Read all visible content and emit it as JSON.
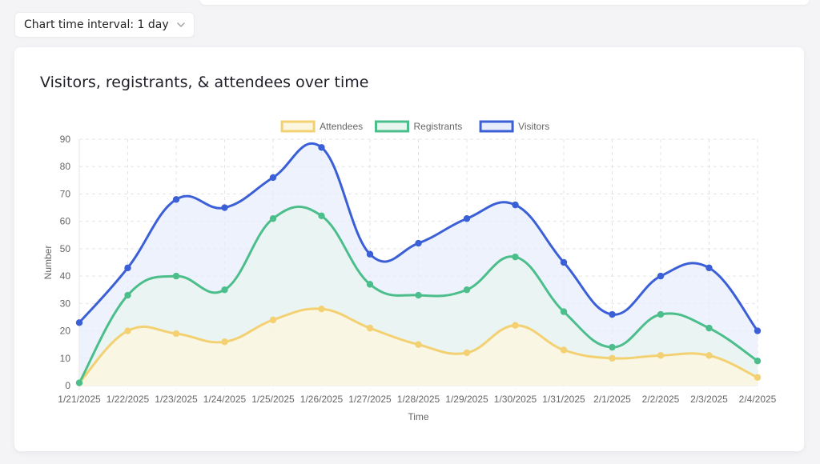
{
  "interval_select": {
    "label": "Chart time interval: 1 day"
  },
  "card": {
    "title": "Visitors, registrants, & attendees over time"
  },
  "colors": {
    "attendees": "#f3d172",
    "registrants": "#4cbe8c",
    "visitors": "#3a5fd6",
    "grid": "#e4e4e4",
    "tick_text": "#666666"
  },
  "chart_data": {
    "type": "line",
    "title": "Visitors, registrants, & attendees over time",
    "xlabel": "Time",
    "ylabel": "Number",
    "ylim": [
      0,
      90
    ],
    "yticks": [
      0,
      10,
      20,
      30,
      40,
      50,
      60,
      70,
      80,
      90
    ],
    "grid": true,
    "legend_position": "top",
    "x": [
      "1/21/2025",
      "1/22/2025",
      "1/23/2025",
      "1/24/2025",
      "1/25/2025",
      "1/26/2025",
      "1/27/2025",
      "1/28/2025",
      "1/29/2025",
      "1/30/2025",
      "1/31/2025",
      "2/1/2025",
      "2/2/2025",
      "2/3/2025",
      "2/4/2025"
    ],
    "series": [
      {
        "name": "Attendees",
        "color": "#f3d172",
        "fill": "#fdf6de",
        "values": [
          1,
          20,
          19,
          16,
          24,
          28,
          21,
          15,
          12,
          22,
          13,
          10,
          11,
          11,
          3
        ]
      },
      {
        "name": "Registrants",
        "color": "#4cbe8c",
        "fill": "#e8f6ef",
        "values": [
          1,
          33,
          40,
          35,
          61,
          62,
          37,
          33,
          35,
          47,
          27,
          14,
          26,
          21,
          9
        ]
      },
      {
        "name": "Visitors",
        "color": "#3a5fd6",
        "fill": "#e7edfc",
        "values": [
          23,
          43,
          68,
          65,
          76,
          87,
          48,
          52,
          61,
          66,
          45,
          26,
          40,
          43,
          20
        ]
      }
    ]
  }
}
